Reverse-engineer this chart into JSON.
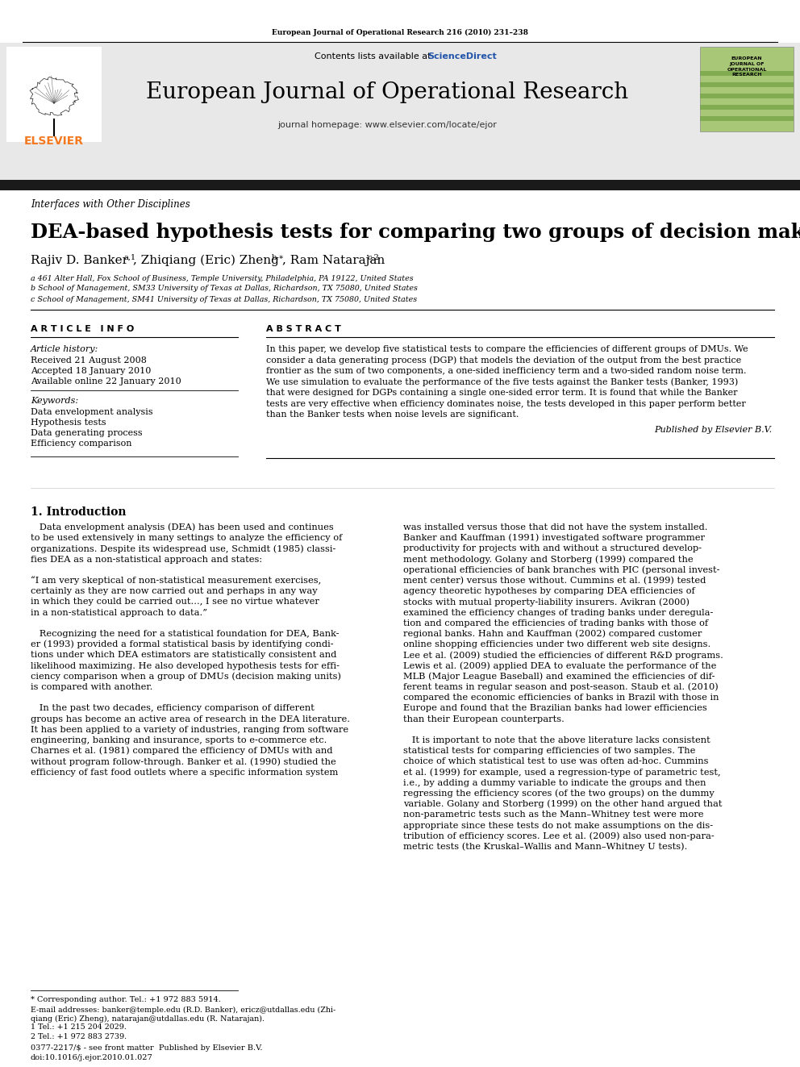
{
  "page_bg": "#ffffff",
  "top_journal_ref": "European Journal of Operational Research 216 (2010) 231–238",
  "journal_name": "European Journal of Operational Research",
  "contents_line": "Contents lists available at",
  "sciencedirect": "ScienceDirect",
  "journal_homepage": "journal homepage: www.elsevier.com/locate/ejor",
  "section_label": "Interfaces with Other Disciplines",
  "article_title": "DEA-based hypothesis tests for comparing two groups of decision making units",
  "affil_a": "a 461 Alter Hall, Fox School of Business, Temple University, Philadelphia, PA 19122, United States",
  "affil_b": "b School of Management, SM33 University of Texas at Dallas, Richardson, TX 75080, United States",
  "affil_c": "c School of Management, SM41 University of Texas at Dallas, Richardson, TX 75080, United States",
  "article_info_title": "A R T I C L E   I N F O",
  "abstract_title": "A B S T R A C T",
  "article_history_label": "Article history:",
  "received": "Received 21 August 2008",
  "accepted": "Accepted 18 January 2010",
  "available": "Available online 22 January 2010",
  "keywords_label": "Keywords:",
  "keywords": [
    "Data envelopment analysis",
    "Hypothesis tests",
    "Data generating process",
    "Efficiency comparison"
  ],
  "abstract_lines": [
    "In this paper, we develop five statistical tests to compare the efficiencies of different groups of DMUs. We",
    "consider a data generating process (DGP) that models the deviation of the output from the best practice",
    "frontier as the sum of two components, a one-sided inefficiency term and a two-sided random noise term.",
    "We use simulation to evaluate the performance of the five tests against the Banker tests (Banker, 1993)",
    "that were designed for DGPs containing a single one-sided error term. It is found that while the Banker",
    "tests are very effective when efficiency dominates noise, the tests developed in this paper perform better",
    "than the Banker tests when noise levels are significant."
  ],
  "published_by": "Published by Elsevier B.V.",
  "intro_title": "1. Introduction",
  "left_col_lines": [
    "   Data envelopment analysis (DEA) has been used and continues",
    "to be used extensively in many settings to analyze the efficiency of",
    "organizations. Despite its widespread use, Schmidt (1985) classi-",
    "fies DEA as a non-statistical approach and states:",
    "",
    "“I am very skeptical of non-statistical measurement exercises,",
    "certainly as they are now carried out and perhaps in any way",
    "in which they could be carried out…, I see no virtue whatever",
    "in a non-statistical approach to data.”",
    "",
    "   Recognizing the need for a statistical foundation for DEA, Bank-",
    "er (1993) provided a formal statistical basis by identifying condi-",
    "tions under which DEA estimators are statistically consistent and",
    "likelihood maximizing. He also developed hypothesis tests for effi-",
    "ciency comparison when a group of DMUs (decision making units)",
    "is compared with another.",
    "",
    "   In the past two decades, efficiency comparison of different",
    "groups has become an active area of research in the DEA literature.",
    "It has been applied to a variety of industries, ranging from software",
    "engineering, banking and insurance, sports to e-commerce etc.",
    "Charnes et al. (1981) compared the efficiency of DMUs with and",
    "without program follow-through. Banker et al. (1990) studied the",
    "efficiency of fast food outlets where a specific information system"
  ],
  "right_col_lines": [
    "was installed versus those that did not have the system installed.",
    "Banker and Kauffman (1991) investigated software programmer",
    "productivity for projects with and without a structured develop-",
    "ment methodology. Golany and Storberg (1999) compared the",
    "operational efficiencies of bank branches with PIC (personal invest-",
    "ment center) versus those without. Cummins et al. (1999) tested",
    "agency theoretic hypotheses by comparing DEA efficiencies of",
    "stocks with mutual property-liability insurers. Avikran (2000)",
    "examined the efficiency changes of trading banks under deregula-",
    "tion and compared the efficiencies of trading banks with those of",
    "regional banks. Hahn and Kauffman (2002) compared customer",
    "online shopping efficiencies under two different web site designs.",
    "Lee et al. (2009) studied the efficiencies of different R&D programs.",
    "Lewis et al. (2009) applied DEA to evaluate the performance of the",
    "MLB (Major League Baseball) and examined the efficiencies of dif-",
    "ferent teams in regular season and post-season. Staub et al. (2010)",
    "compared the economic efficiencies of banks in Brazil with those in",
    "Europe and found that the Brazilian banks had lower efficiencies",
    "than their European counterparts.",
    "",
    "   It is important to note that the above literature lacks consistent",
    "statistical tests for comparing efficiencies of two samples. The",
    "choice of which statistical test to use was often ad-hoc. Cummins",
    "et al. (1999) for example, used a regression-type of parametric test,",
    "i.e., by adding a dummy variable to indicate the groups and then",
    "regressing the efficiency scores (of the two groups) on the dummy",
    "variable. Golany and Storberg (1999) on the other hand argued that",
    "non-parametric tests such as the Mann–Whitney test were more",
    "appropriate since these tests do not make assumptions on the dis-",
    "tribution of efficiency scores. Lee et al. (2009) also used non-para-",
    "metric tests (the Kruskal–Wallis and Mann–Whitney U tests)."
  ],
  "footnote_star": "* Corresponding author. Tel.: +1 972 883 5914.",
  "footnote_email": "E-mail addresses: banker@temple.edu (R.D. Banker), ericz@utdallas.edu (Zhi-",
  "footnote_email2": "qiang (Eric) Zheng), natarajan@utdallas.edu (R. Natarajan).",
  "footnote_1": "1 Tel.: +1 215 204 2029.",
  "footnote_2": "2 Tel.: +1 972 883 2739.",
  "footer_issn": "0377-2217/$ - see front matter  Published by Elsevier B.V.",
  "footer_doi": "doi:10.1016/j.ejor.2010.01.027",
  "header_bg": "#e8e8e8",
  "black_bar_color": "#1a1a1a",
  "elsevier_orange": "#f47920",
  "link_color": "#2255aa",
  "section_color": "#000000"
}
